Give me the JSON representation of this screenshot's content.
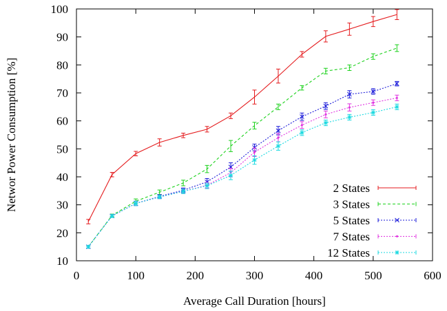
{
  "chart_data": {
    "type": "line",
    "xlabel": "Average Call Duration [hours]",
    "ylabel": "Networ Power Consumption [%]",
    "xlim": [
      0,
      600
    ],
    "ylim": [
      10,
      100
    ],
    "xticks": [
      0,
      100,
      200,
      300,
      400,
      500,
      600
    ],
    "yticks": [
      10,
      20,
      30,
      40,
      50,
      60,
      70,
      80,
      90,
      100
    ],
    "grid": false,
    "legend_position": "bottom-right",
    "x": [
      20,
      60,
      100,
      140,
      180,
      220,
      260,
      300,
      340,
      380,
      420,
      460,
      500,
      540
    ],
    "series": [
      {
        "name": "2 States",
        "color": "#e41a1c",
        "marker": "none",
        "values": [
          24,
          40.8,
          48.3,
          52.3,
          54.8,
          57,
          61.8,
          68.5,
          76,
          83.8,
          90.2,
          92.8,
          95.5,
          98
        ],
        "errors": [
          0.8,
          0.8,
          0.8,
          1.3,
          0.8,
          1.0,
          1.0,
          2.5,
          2.5,
          1.0,
          2.0,
          2.2,
          1.8,
          1.8
        ]
      },
      {
        "name": "3 States",
        "color": "#1ad11a",
        "marker": "none",
        "values": [
          15,
          26.2,
          31.3,
          34.5,
          37.8,
          42.8,
          51,
          58.3,
          65,
          71.8,
          77.8,
          79,
          83,
          86
        ],
        "errors": [
          0.5,
          0.5,
          0.8,
          0.8,
          1.0,
          1.3,
          2.0,
          1.2,
          1.0,
          0.8,
          1.0,
          1.0,
          1.0,
          1.2
        ]
      },
      {
        "name": "5 States",
        "color": "#1a1ad9",
        "marker": "x",
        "values": [
          15,
          26,
          30.5,
          33,
          35.2,
          38.2,
          43.5,
          50.5,
          56.5,
          61.5,
          65.3,
          69.5,
          70.5,
          73.3
        ],
        "errors": [
          0.5,
          0.5,
          0.8,
          0.6,
          0.8,
          1.2,
          1.5,
          1.2,
          1.5,
          1.3,
          1.2,
          1.3,
          1.0,
          0.8
        ]
      },
      {
        "name": "7 States",
        "color": "#e033e0",
        "marker": "dot",
        "values": [
          15,
          26,
          30.5,
          32.8,
          34.8,
          37,
          41.5,
          48.8,
          54,
          58.5,
          62.3,
          64.8,
          66.5,
          68.2
        ],
        "errors": [
          0.5,
          0.5,
          0.8,
          0.6,
          0.8,
          1.0,
          1.5,
          1.5,
          1.5,
          1.2,
          1.2,
          1.3,
          1.0,
          1.0
        ]
      },
      {
        "name": "12 States",
        "color": "#1ad9e0",
        "marker": "star",
        "values": [
          15,
          26,
          30.5,
          32.8,
          34.8,
          36.8,
          40.5,
          46,
          51,
          55.8,
          59.3,
          61.3,
          63,
          65
        ],
        "errors": [
          0.5,
          0.5,
          0.8,
          0.6,
          0.8,
          1.0,
          1.5,
          1.5,
          1.5,
          1.0,
          1.0,
          1.0,
          1.0,
          1.0
        ]
      }
    ]
  }
}
